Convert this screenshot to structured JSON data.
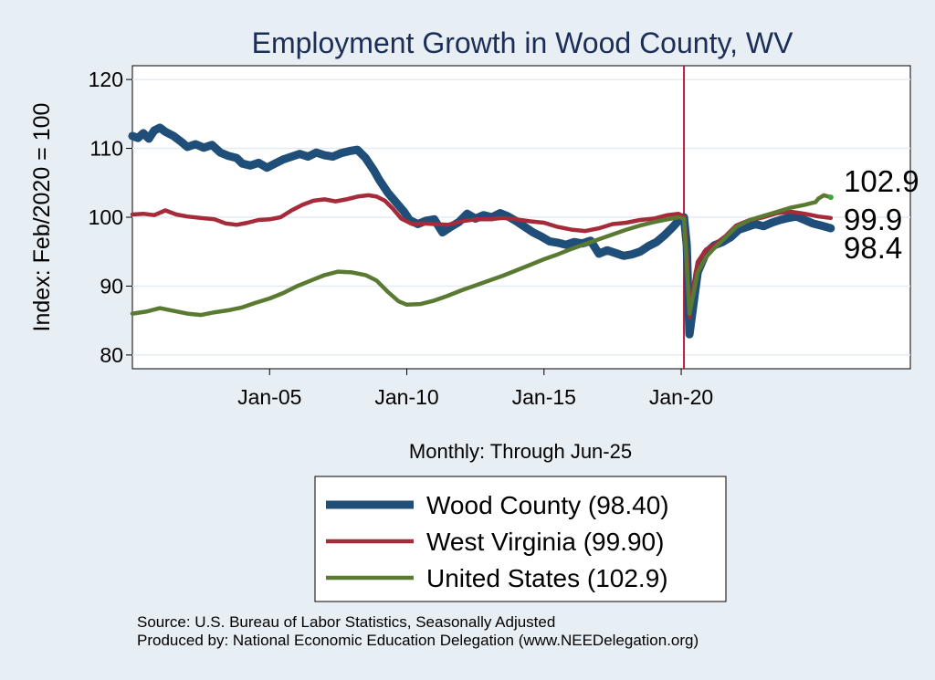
{
  "chart_data": {
    "type": "line",
    "title": "Employment Growth in Wood  County, WV",
    "xlabel": "Monthly: Through Jun-25",
    "ylabel": "Index: Feb/2020 = 100",
    "ylim": [
      78,
      122
    ],
    "xlim": [
      2000.0,
      2028.35
    ],
    "y_ticks": [
      80,
      90,
      100,
      110,
      120
    ],
    "x_ticks": [
      {
        "label": "Jan-05",
        "value": 2005.0
      },
      {
        "label": "Jan-10",
        "value": 2010.0
      },
      {
        "label": "Jan-15",
        "value": 2015.0
      },
      {
        "label": "Jan-20",
        "value": 2020.0
      }
    ],
    "grid": true,
    "vline": {
      "x": 2020.1,
      "color": "#b81e3c"
    },
    "end_labels": [
      "102.9",
      "99.9",
      "98.4"
    ],
    "legend": {
      "position": "bottom-center"
    },
    "series": [
      {
        "name": "Wood  County (98.40)",
        "color": "#1f4e79",
        "width": 9,
        "x": [
          2000.0,
          2000.2,
          2000.4,
          2000.6,
          2000.8,
          2001.0,
          2001.2,
          2001.5,
          2001.8,
          2002.0,
          2002.3,
          2002.6,
          2002.9,
          2003.2,
          2003.5,
          2003.8,
          2004.0,
          2004.3,
          2004.6,
          2004.9,
          2005.2,
          2005.5,
          2005.8,
          2006.1,
          2006.4,
          2006.7,
          2007.0,
          2007.3,
          2007.6,
          2007.9,
          2008.2,
          2008.5,
          2008.8,
          2009.0,
          2009.3,
          2009.6,
          2009.9,
          2010.1,
          2010.4,
          2010.7,
          2011.0,
          2011.3,
          2011.6,
          2011.9,
          2012.2,
          2012.5,
          2012.8,
          2013.1,
          2013.4,
          2013.7,
          2014.0,
          2014.3,
          2014.6,
          2014.9,
          2015.2,
          2015.5,
          2015.8,
          2016.1,
          2016.4,
          2016.7,
          2017.0,
          2017.3,
          2017.6,
          2017.9,
          2018.2,
          2018.5,
          2018.8,
          2019.1,
          2019.4,
          2019.7,
          2019.9,
          2020.1,
          2020.2,
          2020.3,
          2020.4,
          2020.6,
          2020.9,
          2021.2,
          2021.5,
          2021.8,
          2022.1,
          2022.4,
          2022.7,
          2023.0,
          2023.3,
          2023.6,
          2023.9,
          2024.2,
          2024.5,
          2024.8,
          2025.1,
          2025.45
        ],
        "values": [
          111.8,
          111.5,
          112.2,
          111.4,
          112.6,
          113.0,
          112.4,
          111.8,
          110.9,
          110.2,
          110.6,
          110.1,
          110.5,
          109.4,
          108.9,
          108.6,
          107.8,
          107.5,
          107.9,
          107.2,
          107.8,
          108.4,
          108.8,
          109.2,
          108.8,
          109.4,
          109.0,
          108.8,
          109.3,
          109.6,
          109.8,
          108.6,
          106.8,
          105.4,
          103.6,
          102.2,
          100.8,
          99.6,
          99.0,
          99.5,
          99.7,
          97.8,
          98.6,
          99.3,
          100.5,
          99.8,
          100.3,
          100.0,
          100.6,
          100.1,
          99.4,
          98.6,
          97.8,
          97.2,
          96.5,
          96.3,
          96.0,
          96.4,
          96.2,
          96.6,
          94.7,
          95.2,
          94.8,
          94.4,
          94.6,
          95.0,
          95.8,
          96.4,
          97.4,
          98.6,
          99.5,
          100.0,
          96.0,
          83.0,
          86.0,
          92.0,
          94.8,
          95.9,
          96.4,
          97.1,
          98.2,
          98.6,
          99.0,
          98.7,
          99.2,
          99.6,
          99.9,
          100.1,
          99.6,
          99.1,
          98.8,
          98.4
        ]
      },
      {
        "name": "West Virginia (99.90)",
        "color": "#a52a3a",
        "width": 4.5,
        "x": [
          2000.0,
          2000.4,
          2000.8,
          2001.2,
          2001.6,
          2002.0,
          2002.5,
          2003.0,
          2003.4,
          2003.8,
          2004.2,
          2004.6,
          2005.0,
          2005.4,
          2005.8,
          2006.2,
          2006.6,
          2007.0,
          2007.4,
          2007.8,
          2008.2,
          2008.6,
          2008.9,
          2009.2,
          2009.5,
          2009.8,
          2010.2,
          2010.6,
          2011.0,
          2011.5,
          2012.0,
          2012.5,
          2013.0,
          2013.5,
          2014.0,
          2014.5,
          2015.0,
          2015.5,
          2016.0,
          2016.5,
          2017.0,
          2017.5,
          2018.0,
          2018.5,
          2019.0,
          2019.5,
          2019.9,
          2020.1,
          2020.2,
          2020.3,
          2020.4,
          2020.6,
          2020.9,
          2021.2,
          2021.6,
          2022.0,
          2022.5,
          2023.0,
          2023.5,
          2024.0,
          2024.5,
          2025.0,
          2025.45
        ],
        "values": [
          100.4,
          100.5,
          100.3,
          101.0,
          100.4,
          100.1,
          99.9,
          99.7,
          99.1,
          98.9,
          99.2,
          99.6,
          99.7,
          100.0,
          101.0,
          101.8,
          102.4,
          102.6,
          102.3,
          102.6,
          103.0,
          103.2,
          103.0,
          102.4,
          101.2,
          99.8,
          99.0,
          99.1,
          99.0,
          98.9,
          99.4,
          99.7,
          99.7,
          99.9,
          99.7,
          99.4,
          99.2,
          98.6,
          98.2,
          98.0,
          98.4,
          99.0,
          99.2,
          99.6,
          99.8,
          100.3,
          100.5,
          100.1,
          95.0,
          85.5,
          89.0,
          93.5,
          95.3,
          96.0,
          97.2,
          98.8,
          99.6,
          100.0,
          100.6,
          100.8,
          100.5,
          100.1,
          99.9
        ]
      },
      {
        "name": "United States (102.9)",
        "color": "#5a7a32",
        "width": 4.5,
        "x": [
          2000.0,
          2000.5,
          2001.0,
          2001.5,
          2002.0,
          2002.5,
          2003.0,
          2003.5,
          2004.0,
          2004.5,
          2005.0,
          2005.5,
          2006.0,
          2006.5,
          2007.0,
          2007.5,
          2008.0,
          2008.5,
          2008.9,
          2009.3,
          2009.7,
          2010.0,
          2010.5,
          2011.0,
          2011.5,
          2012.0,
          2012.5,
          2013.0,
          2013.5,
          2014.0,
          2014.5,
          2015.0,
          2015.5,
          2016.0,
          2016.5,
          2017.0,
          2017.5,
          2018.0,
          2018.5,
          2019.0,
          2019.5,
          2019.9,
          2020.1,
          2020.2,
          2020.3,
          2020.4,
          2020.6,
          2020.9,
          2021.2,
          2021.6,
          2022.0,
          2022.5,
          2023.0,
          2023.5,
          2024.0,
          2024.5,
          2024.9,
          2025.0,
          2025.2,
          2025.45
        ],
        "values": [
          86.0,
          86.3,
          86.8,
          86.4,
          86.0,
          85.8,
          86.2,
          86.5,
          86.9,
          87.6,
          88.2,
          89.0,
          90.0,
          90.8,
          91.6,
          92.1,
          92.0,
          91.6,
          90.8,
          89.2,
          87.8,
          87.3,
          87.4,
          87.9,
          88.6,
          89.4,
          90.1,
          90.8,
          91.5,
          92.3,
          93.1,
          93.9,
          94.6,
          95.4,
          96.1,
          96.8,
          97.5,
          98.2,
          98.8,
          99.3,
          99.7,
          100.0,
          99.8,
          93.0,
          86.0,
          88.0,
          92.0,
          94.2,
          95.5,
          97.0,
          98.6,
          99.6,
          100.2,
          100.8,
          101.4,
          101.8,
          102.2,
          102.7,
          103.2,
          102.9
        ]
      }
    ]
  },
  "source": {
    "line1": "Source: U.S. Bureau of Labor Statistics, Seasonally Adjusted",
    "line2": "Produced by: National Economic Education Delegation (www.NEEDelegation.org)"
  }
}
